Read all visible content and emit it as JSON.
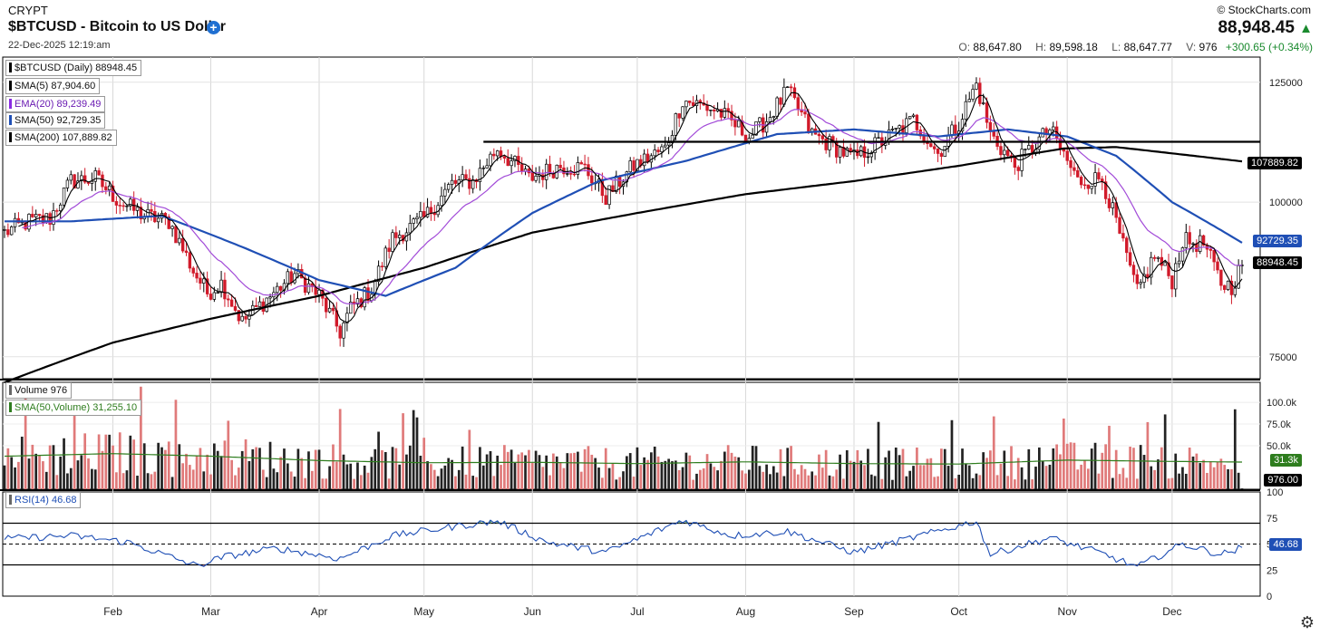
{
  "header": {
    "exchange": "CRYPT",
    "title": "$BTCUSD - Bitcoin to US Dollar",
    "datetime": "22-Dec-2025 12:19:am",
    "copyright": "© StockCharts.com",
    "last_price": "88,948.45",
    "ohlcv": {
      "open_label": "O:",
      "open": "88,647.80",
      "high_label": "H:",
      "high": "89,598.18",
      "low_label": "L:",
      "low": "88,647.77",
      "volume_label": "V:",
      "volume": "976",
      "change": "+300.65 (+0.34%)"
    }
  },
  "legends": {
    "price": [
      {
        "label": "$BTCUSD (Daily) 88948.45",
        "color": "#000000"
      },
      {
        "label": "SMA(5) 87,904.60",
        "color": "#000000"
      },
      {
        "label": "EMA(20) 89,239.49",
        "color": "#8a2be2"
      },
      {
        "label": "SMA(50) 92,729.35",
        "color": "#1f4fb5"
      },
      {
        "label": "SMA(200) 107,889.82",
        "color": "#000000"
      }
    ],
    "volume": [
      {
        "label": "Volume 976",
        "color": "#666666"
      },
      {
        "label": "SMA(50,Volume) 31,255.10",
        "color": "#2e7d1e"
      }
    ],
    "rsi": [
      {
        "label": "RSI(14) 46.68",
        "color": "#1f4fb5"
      }
    ]
  },
  "price_tags": [
    {
      "text": "107889.82",
      "bg": "#000000",
      "value": 107889.82
    },
    {
      "text": "92729.35",
      "bg": "#1f4fb5",
      "value": 92729.35
    },
    {
      "text": "88948.45",
      "bg": "#000000",
      "value": 88948.45
    }
  ],
  "volume_tags": [
    {
      "text": "31.3k",
      "bg": "#2e7d1e",
      "value": 31300
    },
    {
      "text": "976.00",
      "bg": "#000000",
      "value": 976
    }
  ],
  "rsi_tag": {
    "text": "46.68",
    "bg": "#1f4fb5",
    "value": 46.68
  },
  "chart_data": {
    "type": "candlestick",
    "months": [
      "Feb",
      "Mar",
      "Apr",
      "May",
      "Jun",
      "Jul",
      "Aug",
      "Sep",
      "Oct",
      "Nov",
      "Dec"
    ],
    "price_axis": {
      "ticks": [
        75000,
        100000,
        125000
      ],
      "tick_labels": [
        "75000",
        "100000",
        "125000"
      ],
      "scale": "log",
      "ylim": [
        72000,
        131000
      ]
    },
    "volume_axis": {
      "ticks": [
        50000,
        75000,
        100000
      ],
      "tick_labels": [
        "50.0k",
        "75.0k",
        "100.0k"
      ],
      "ylim": [
        0,
        123000
      ]
    },
    "rsi_axis": {
      "ticks": [
        0,
        25,
        50,
        75,
        100
      ],
      "tick_labels": [
        "0",
        "25",
        "50",
        "75",
        "100"
      ],
      "overbought": 70,
      "oversold": 30
    },
    "resistance_level": 111900,
    "price_close_keypoints": [
      [
        "2025-01-01",
        94500
      ],
      [
        "2025-01-08",
        96500
      ],
      [
        "2025-01-14",
        97000
      ],
      [
        "2025-01-20",
        104000
      ],
      [
        "2025-01-27",
        104500
      ],
      [
        "2025-02-03",
        100000
      ],
      [
        "2025-02-10",
        97500
      ],
      [
        "2025-02-17",
        96500
      ],
      [
        "2025-02-24",
        88000
      ],
      [
        "2025-02-28",
        84500
      ],
      [
        "2025-03-04",
        86000
      ],
      [
        "2025-03-10",
        80000
      ],
      [
        "2025-03-18",
        84000
      ],
      [
        "2025-03-25",
        87500
      ],
      [
        "2025-04-01",
        84000
      ],
      [
        "2025-04-07",
        78500
      ],
      [
        "2025-04-10",
        82000
      ],
      [
        "2025-04-16",
        85000
      ],
      [
        "2025-04-22",
        93500
      ],
      [
        "2025-05-01",
        97000
      ],
      [
        "2025-05-09",
        103500
      ],
      [
        "2025-05-15",
        104000
      ],
      [
        "2025-05-22",
        110500
      ],
      [
        "2025-05-31",
        104500
      ],
      [
        "2025-06-09",
        107000
      ],
      [
        "2025-06-16",
        106500
      ],
      [
        "2025-06-22",
        101000
      ],
      [
        "2025-06-30",
        107000
      ],
      [
        "2025-07-09",
        110500
      ],
      [
        "2025-07-14",
        121000
      ],
      [
        "2025-07-24",
        118500
      ],
      [
        "2025-08-02",
        113000
      ],
      [
        "2025-08-07",
        116500
      ],
      [
        "2025-08-13",
        123000
      ],
      [
        "2025-08-20",
        113500
      ],
      [
        "2025-09-01",
        108500
      ],
      [
        "2025-09-10",
        112500
      ],
      [
        "2025-09-18",
        116500
      ],
      [
        "2025-09-25",
        109500
      ],
      [
        "2025-10-01",
        116000
      ],
      [
        "2025-10-06",
        124500
      ],
      [
        "2025-10-10",
        113500
      ],
      [
        "2025-10-17",
        107000
      ],
      [
        "2025-10-27",
        114500
      ],
      [
        "2025-11-04",
        104000
      ],
      [
        "2025-11-11",
        104500
      ],
      [
        "2025-11-17",
        92000
      ],
      [
        "2025-11-21",
        84500
      ],
      [
        "2025-11-26",
        90500
      ],
      [
        "2025-12-01",
        86500
      ],
      [
        "2025-12-04",
        93000
      ],
      [
        "2025-12-10",
        92500
      ],
      [
        "2025-12-15",
        86000
      ],
      [
        "2025-12-18",
        85500
      ],
      [
        "2025-12-21",
        88948.45
      ]
    ],
    "sma50_keypoints": [
      [
        "2025-01-01",
        96500
      ],
      [
        "2025-01-20",
        96500
      ],
      [
        "2025-02-15",
        97500
      ],
      [
        "2025-03-10",
        92000
      ],
      [
        "2025-04-01",
        86500
      ],
      [
        "2025-04-20",
        84000
      ],
      [
        "2025-05-10",
        88500
      ],
      [
        "2025-06-01",
        98000
      ],
      [
        "2025-06-20",
        104000
      ],
      [
        "2025-07-15",
        108000
      ],
      [
        "2025-08-10",
        113500
      ],
      [
        "2025-09-01",
        114500
      ],
      [
        "2025-09-25",
        113000
      ],
      [
        "2025-10-15",
        114500
      ],
      [
        "2025-11-01",
        113000
      ],
      [
        "2025-11-15",
        109000
      ],
      [
        "2025-12-01",
        100000
      ],
      [
        "2025-12-21",
        92729.35
      ]
    ],
    "sma200_keypoints": [
      [
        "2025-01-01",
        71500
      ],
      [
        "2025-02-01",
        77000
      ],
      [
        "2025-03-01",
        80500
      ],
      [
        "2025-04-01",
        84000
      ],
      [
        "2025-05-01",
        88500
      ],
      [
        "2025-06-01",
        94500
      ],
      [
        "2025-07-01",
        98000
      ],
      [
        "2025-08-01",
        101500
      ],
      [
        "2025-09-01",
        104000
      ],
      [
        "2025-10-01",
        107000
      ],
      [
        "2025-10-31",
        110500
      ],
      [
        "2025-11-15",
        110800
      ],
      [
        "2025-12-21",
        107889.82
      ]
    ],
    "volume_sma50_keypoints": [
      [
        "2025-01-01",
        38000
      ],
      [
        "2025-02-01",
        41000
      ],
      [
        "2025-03-01",
        38000
      ],
      [
        "2025-04-01",
        33000
      ],
      [
        "2025-05-01",
        30500
      ],
      [
        "2025-06-01",
        31000
      ],
      [
        "2025-07-01",
        29500
      ],
      [
        "2025-08-01",
        31500
      ],
      [
        "2025-09-01",
        29500
      ],
      [
        "2025-10-01",
        29000
      ],
      [
        "2025-11-01",
        33500
      ],
      [
        "2025-12-01",
        32000
      ],
      [
        "2025-12-21",
        31255.1
      ]
    ],
    "rsi_keypoints": [
      [
        "2025-01-01",
        55
      ],
      [
        "2025-01-20",
        58
      ],
      [
        "2025-02-05",
        52
      ],
      [
        "2025-02-25",
        29
      ],
      [
        "2025-03-05",
        38
      ],
      [
        "2025-03-20",
        46
      ],
      [
        "2025-04-07",
        36
      ],
      [
        "2025-04-22",
        58
      ],
      [
        "2025-05-10",
        67
      ],
      [
        "2025-05-22",
        72
      ],
      [
        "2025-06-05",
        52
      ],
      [
        "2025-06-22",
        42
      ],
      [
        "2025-07-14",
        73
      ],
      [
        "2025-07-28",
        58
      ],
      [
        "2025-08-13",
        62
      ],
      [
        "2025-09-01",
        42
      ],
      [
        "2025-09-20",
        58
      ],
      [
        "2025-10-06",
        72
      ],
      [
        "2025-10-10",
        40
      ],
      [
        "2025-10-27",
        56
      ],
      [
        "2025-11-10",
        42
      ],
      [
        "2025-11-21",
        28
      ],
      [
        "2025-12-04",
        50
      ],
      [
        "2025-12-15",
        40
      ],
      [
        "2025-12-21",
        46.68
      ]
    ]
  }
}
